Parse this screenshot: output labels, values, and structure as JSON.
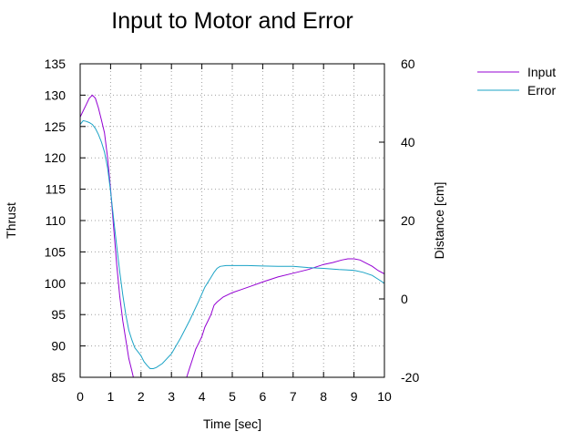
{
  "chart_data": {
    "type": "line",
    "title": "Input to Motor and Error",
    "xlabel": "Time [sec]",
    "ylabel": "Thrust",
    "y2label": "Distance [cm]",
    "xlim": [
      0,
      10
    ],
    "ylim": [
      85,
      135
    ],
    "y2lim": [
      -20,
      60
    ],
    "grid": true,
    "legend_position": "top-right, outside plot",
    "x_ticks": [
      "0",
      "1",
      "2",
      "3",
      "4",
      "5",
      "6",
      "7",
      "8",
      "9",
      "10"
    ],
    "y_ticks": [
      "135",
      "130",
      "125",
      "120",
      "115",
      "110",
      "105",
      "100",
      "95",
      "90",
      "85"
    ],
    "y2_ticks": [
      "60",
      "40",
      "20",
      "0",
      "-20"
    ],
    "series": [
      {
        "name": "Input",
        "axis": "left",
        "color": "#9400d3",
        "x": [
          0,
          0.1,
          0.2,
          0.3,
          0.4,
          0.5,
          0.6,
          0.7,
          0.8,
          0.9,
          1.0,
          1.1,
          1.2,
          1.3,
          1.4,
          1.5,
          1.6,
          1.7,
          1.75,
          3.5,
          3.6,
          3.7,
          3.8,
          3.9,
          4.0,
          4.1,
          4.2,
          4.3,
          4.4,
          4.5,
          4.7,
          5.0,
          5.3,
          5.6,
          6.0,
          6.5,
          7.0,
          7.5,
          8.0,
          8.3,
          8.6,
          8.8,
          9.0,
          9.2,
          9.4,
          9.6,
          9.8,
          10.0
        ],
        "values": [
          126.5,
          127.5,
          128.5,
          129.5,
          130.0,
          129.5,
          128.0,
          126.0,
          124.0,
          120.0,
          115.0,
          109.0,
          103.0,
          98.0,
          94.0,
          91.0,
          88.0,
          86.0,
          85.0,
          85.0,
          86.5,
          88.0,
          89.5,
          90.5,
          91.5,
          93.0,
          94.0,
          95.0,
          96.5,
          97.0,
          97.8,
          98.5,
          99.0,
          99.5,
          100.2,
          101.0,
          101.6,
          102.2,
          103.0,
          103.3,
          103.7,
          103.9,
          103.9,
          103.7,
          103.2,
          102.7,
          102.0,
          101.5
        ]
      },
      {
        "name": "Error",
        "axis": "right",
        "color": "#1ba3c6",
        "x": [
          0,
          0.1,
          0.2,
          0.3,
          0.4,
          0.5,
          0.6,
          0.7,
          0.8,
          0.9,
          1.0,
          1.1,
          1.2,
          1.3,
          1.4,
          1.5,
          1.6,
          1.7,
          1.8,
          1.9,
          2.0,
          2.1,
          2.2,
          2.3,
          2.4,
          2.5,
          2.7,
          3.0,
          3.3,
          3.6,
          3.9,
          4.1,
          4.3,
          4.4,
          4.5,
          4.6,
          4.8,
          5.0,
          5.5,
          6.0,
          6.5,
          7.0,
          7.5,
          8.0,
          8.5,
          9.0,
          9.3,
          9.6,
          9.8,
          10.0
        ],
        "values": [
          44.5,
          45.5,
          45.3,
          45.0,
          44.5,
          43.5,
          42.0,
          40.0,
          37.5,
          33.5,
          27.5,
          20.5,
          13.5,
          7.0,
          1.0,
          -4.0,
          -8.0,
          -10.5,
          -12.5,
          -13.5,
          -14.5,
          -16.0,
          -17.0,
          -17.8,
          -17.8,
          -17.5,
          -16.5,
          -14.0,
          -10.0,
          -5.5,
          -0.5,
          3.0,
          5.5,
          6.8,
          7.8,
          8.3,
          8.5,
          8.5,
          8.5,
          8.4,
          8.3,
          8.3,
          8.0,
          7.8,
          7.5,
          7.3,
          6.8,
          6.0,
          5.0,
          4.0
        ]
      }
    ]
  }
}
